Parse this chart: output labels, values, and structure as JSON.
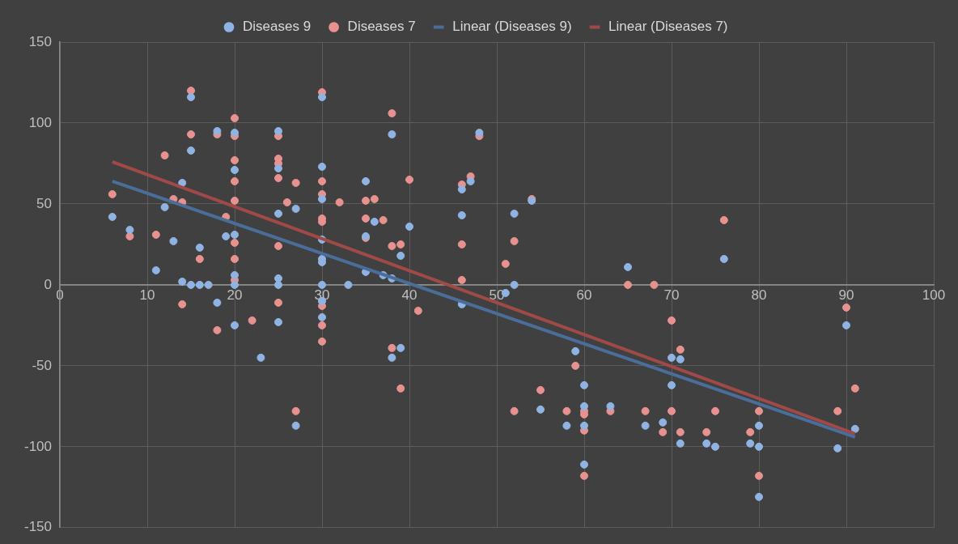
{
  "chart_data": {
    "type": "scatter",
    "grid": true,
    "legend": "top",
    "xlim": [
      0,
      100
    ],
    "xticks": [
      0,
      10,
      20,
      30,
      40,
      50,
      60,
      70,
      80,
      90,
      100
    ],
    "ylim": [
      -150,
      150
    ],
    "yticks": [
      -150,
      -100,
      -50,
      0,
      50,
      100,
      150
    ],
    "series": [
      {
        "name": "Diseases 9",
        "type": "scatter",
        "marker": "circle",
        "color": "#8fb4e3",
        "x": [
          6,
          8,
          11,
          12,
          13,
          14,
          14,
          15,
          15,
          15,
          16,
          16,
          17,
          18,
          18,
          19,
          20,
          20,
          20,
          20,
          20,
          20,
          23,
          25,
          25,
          25,
          25,
          25,
          25,
          27,
          27,
          30,
          30,
          30,
          30,
          30,
          30,
          30,
          30,
          30,
          33,
          35,
          35,
          35,
          36,
          37,
          38,
          38,
          38,
          39,
          39,
          40,
          46,
          46,
          46,
          47,
          48,
          51,
          52,
          52,
          54,
          55,
          58,
          59,
          60,
          60,
          60,
          60,
          63,
          65,
          67,
          69,
          70,
          70,
          71,
          71,
          74,
          75,
          76,
          79,
          80,
          80,
          80,
          89,
          90,
          91
        ],
        "values": [
          42,
          34,
          9,
          48,
          27,
          63,
          2,
          116,
          83,
          0,
          23,
          0,
          0,
          95,
          -11,
          30,
          94,
          71,
          31,
          6,
          0,
          -25,
          -45,
          95,
          72,
          44,
          4,
          0,
          -23,
          47,
          -87,
          116,
          73,
          53,
          28,
          16,
          14,
          0,
          -10,
          -20,
          0,
          64,
          30,
          8,
          39,
          6,
          93,
          4,
          -45,
          18,
          -39,
          36,
          59,
          43,
          -12,
          64,
          94,
          -5,
          44,
          0,
          52,
          -77,
          -87,
          -41,
          -62,
          -75,
          -87,
          -111,
          -75,
          11,
          -87,
          -85,
          -45,
          -62,
          -46,
          -98,
          -98,
          -100,
          16,
          -98,
          -87,
          -100,
          -131,
          -101,
          -25,
          -89
        ]
      },
      {
        "name": "Diseases 7",
        "type": "scatter",
        "marker": "circle",
        "color": "#e8928f",
        "x": [
          6,
          8,
          11,
          12,
          13,
          14,
          14,
          15,
          15,
          16,
          18,
          18,
          19,
          20,
          20,
          20,
          20,
          20,
          20,
          20,
          20,
          22,
          25,
          25,
          25,
          25,
          25,
          25,
          26,
          27,
          27,
          30,
          30,
          30,
          30,
          30,
          30,
          30,
          30,
          30,
          32,
          35,
          35,
          35,
          36,
          37,
          38,
          38,
          38,
          39,
          39,
          40,
          41,
          46,
          46,
          46,
          47,
          48,
          51,
          52,
          52,
          54,
          55,
          58,
          59,
          60,
          60,
          60,
          60,
          63,
          65,
          67,
          68,
          69,
          70,
          70,
          71,
          71,
          74,
          75,
          76,
          79,
          80,
          80,
          89,
          90,
          91
        ],
        "values": [
          56,
          30,
          31,
          80,
          53,
          51,
          -12,
          120,
          93,
          16,
          -28,
          93,
          42,
          103,
          92,
          77,
          64,
          52,
          26,
          16,
          3,
          -22,
          92,
          78,
          75,
          66,
          24,
          -11,
          51,
          63,
          -78,
          119,
          64,
          56,
          41,
          39,
          -10,
          -13,
          -25,
          -35,
          51,
          52,
          41,
          29,
          53,
          40,
          106,
          24,
          -39,
          25,
          -64,
          65,
          -16,
          62,
          25,
          3,
          67,
          92,
          13,
          27,
          -78,
          53,
          -65,
          -78,
          -50,
          -78,
          -80,
          -90,
          -118,
          -78,
          0,
          -78,
          0,
          -91,
          -22,
          -78,
          -40,
          -91,
          -91,
          -78,
          40,
          -91,
          -78,
          -118,
          -78,
          -14,
          -64
        ]
      },
      {
        "name": "Linear (Diseases 9)",
        "type": "line",
        "marker": "none",
        "color": "#4a6d9a",
        "x": [
          6,
          91
        ],
        "values": [
          64,
          -94
        ]
      },
      {
        "name": "Linear (Diseases 7)",
        "type": "line",
        "marker": "none",
        "color": "#a04a47",
        "x": [
          6,
          91
        ],
        "values": [
          76,
          -92
        ]
      }
    ]
  }
}
